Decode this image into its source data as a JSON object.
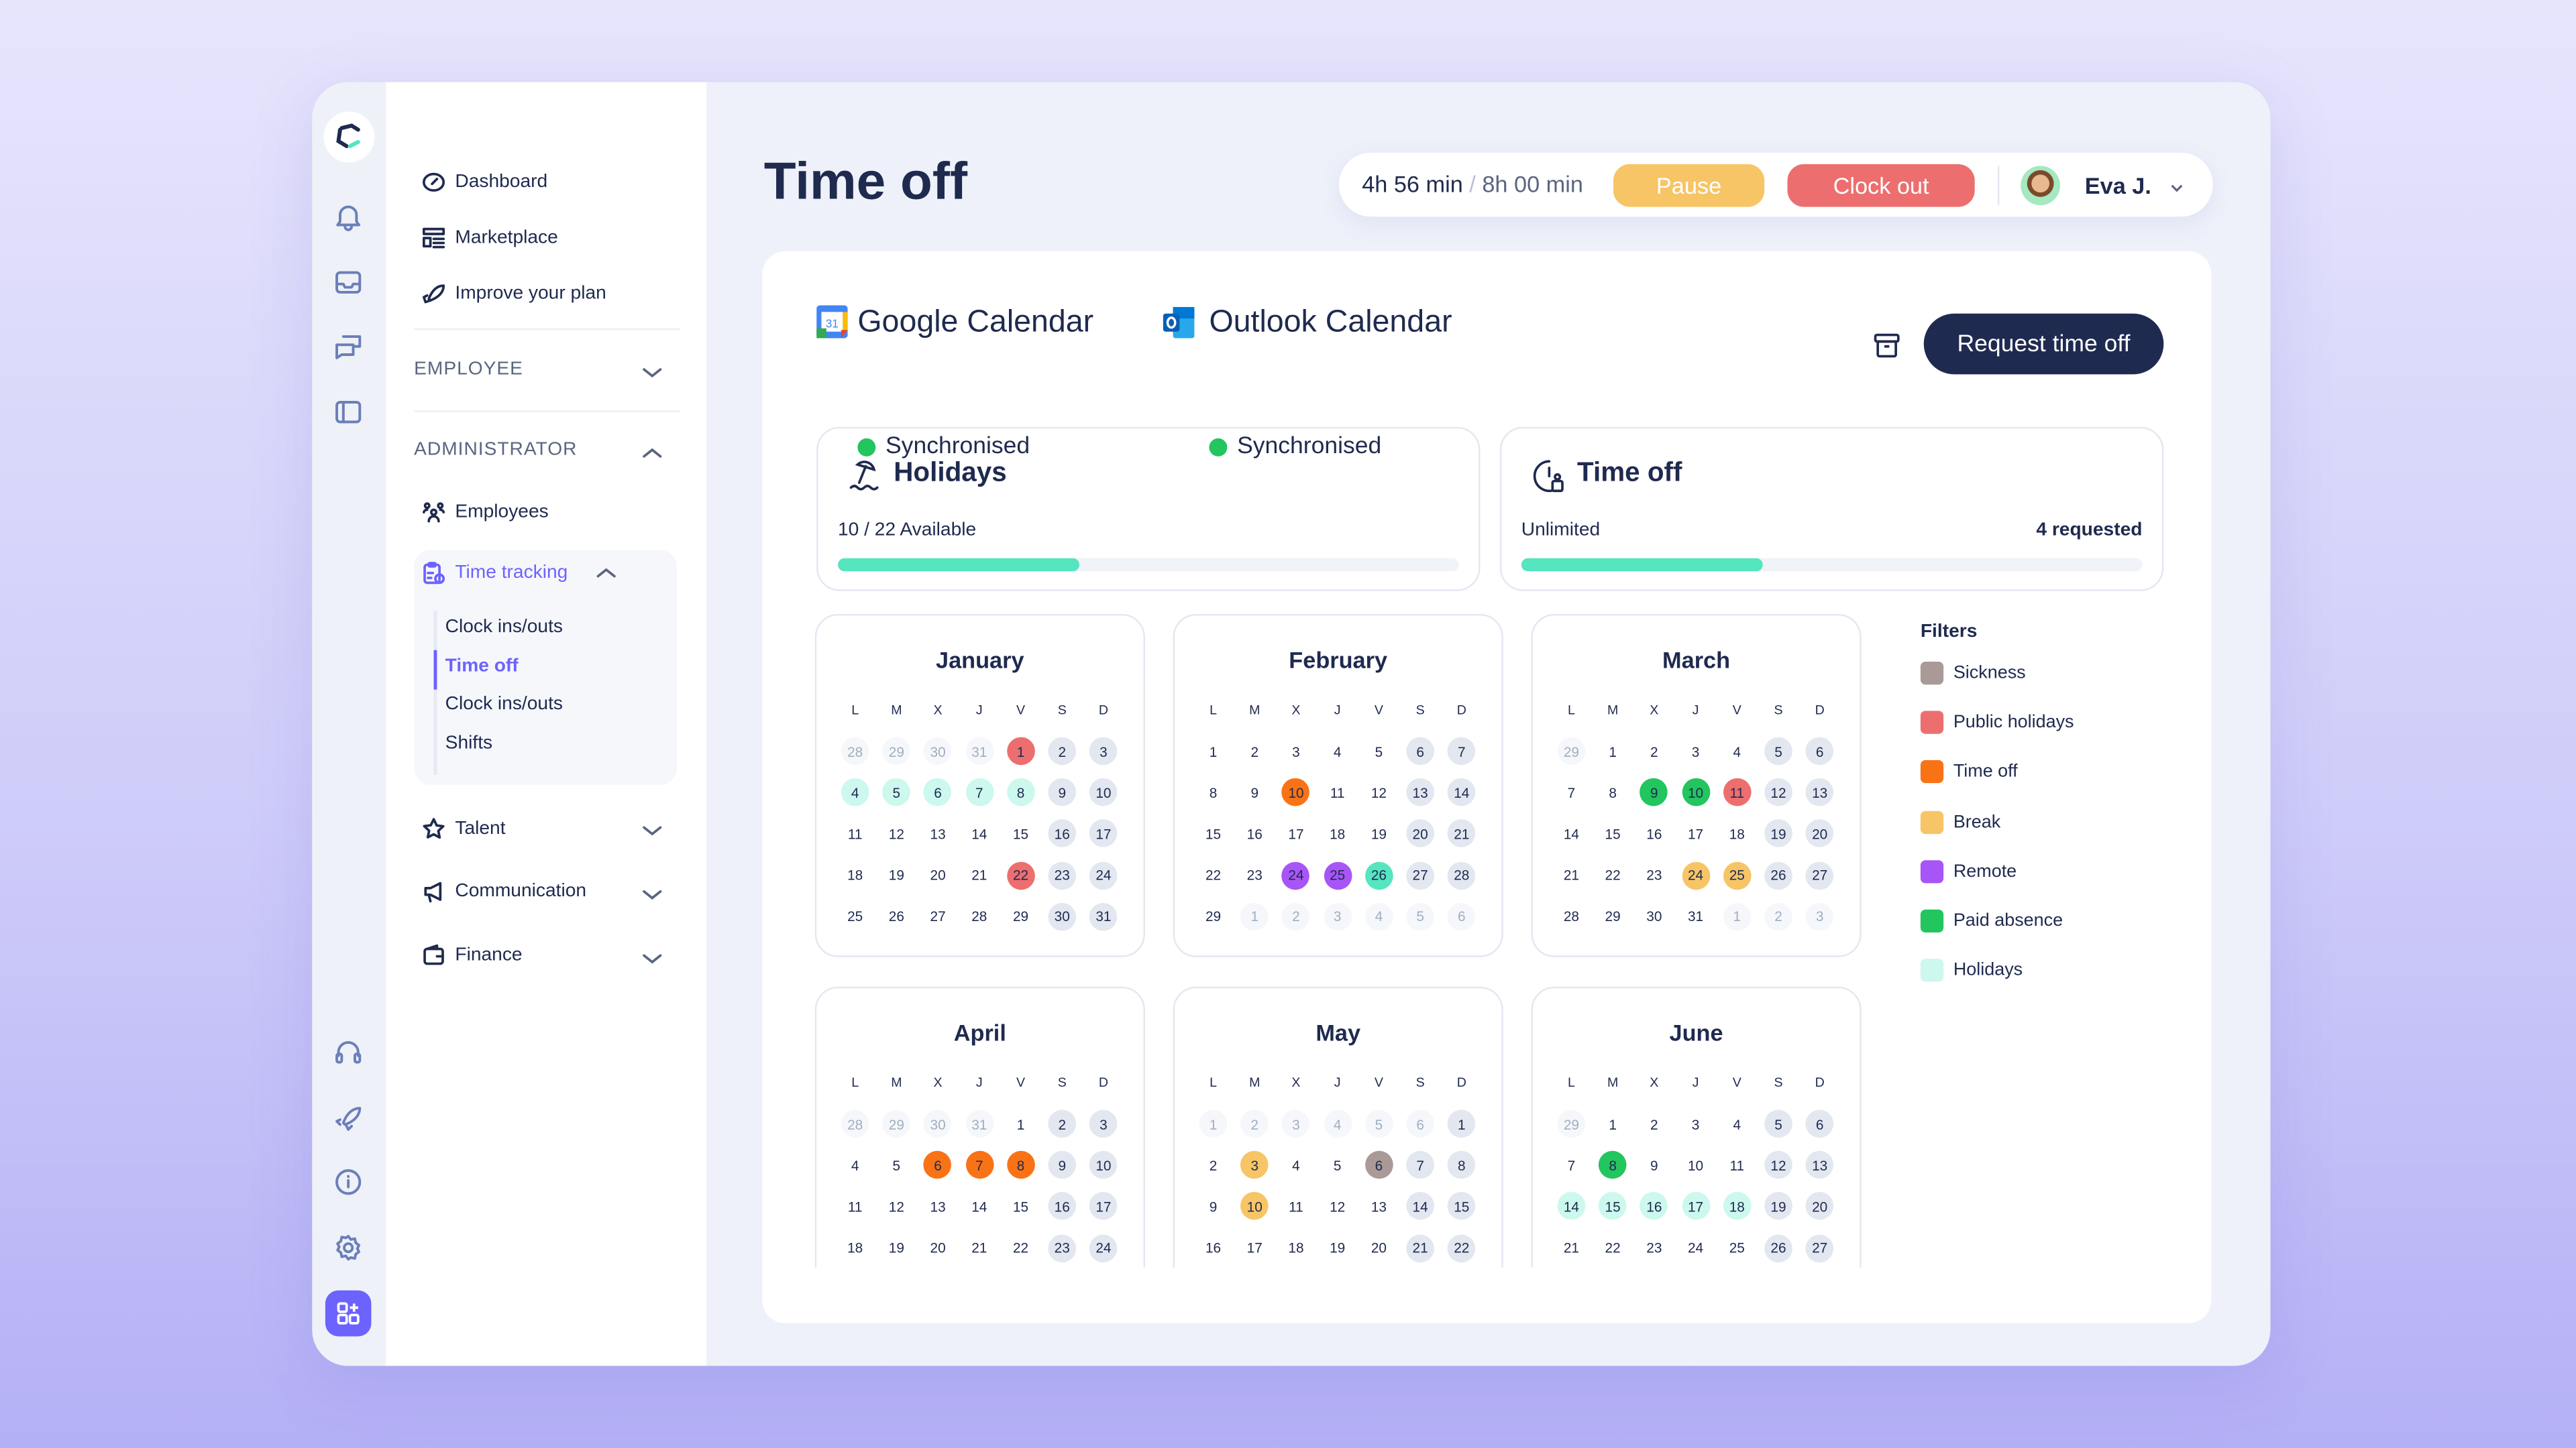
{
  "rail": {
    "top_icons": [
      "bell-icon",
      "inbox-icon",
      "chat-icon",
      "sidebar-panel-icon"
    ],
    "bottom_icons": [
      "headset-icon",
      "rocket-icon",
      "info-icon",
      "gear-icon"
    ]
  },
  "nav": {
    "items": [
      {
        "label": "Dashboard",
        "icon": "dashboard-icon"
      },
      {
        "label": "Marketplace",
        "icon": "marketplace-icon"
      },
      {
        "label": "Improve your plan",
        "icon": "rocket-icon"
      }
    ],
    "employee_section": "EMPLOYEE",
    "admin_section": "ADMINISTRATOR",
    "employees": "Employees",
    "time_tracking": "Time tracking",
    "time_tracking_items": [
      "Clock ins/outs",
      "Time off",
      "Clock ins/outs",
      "Shifts"
    ],
    "active_subitem": "Time off",
    "groups": [
      {
        "label": "Talent",
        "icon": "star-icon"
      },
      {
        "label": "Communication",
        "icon": "megaphone-icon"
      },
      {
        "label": "Finance",
        "icon": "wallet-icon"
      }
    ]
  },
  "header": {
    "title": "Time off",
    "worked": "4h 56 min",
    "separator": "/",
    "target": "8h 00 min",
    "pause": "Pause",
    "clock_out": "Clock out",
    "user": "Eva J."
  },
  "integrations": [
    {
      "name": "Google Calendar",
      "status": "Synchronised"
    },
    {
      "name": "Outlook Calendar",
      "status": "Synchronised"
    }
  ],
  "request_button": "Request time off",
  "stats": {
    "holidays": {
      "title": "Holidays",
      "text": "10 / 22 Available",
      "progress": 0.39
    },
    "time_off": {
      "title": "Time off",
      "text": "Unlimited",
      "requested": "4 requested",
      "progress": 0.39
    }
  },
  "weekdays": [
    "L",
    "M",
    "X",
    "J",
    "V",
    "S",
    "D"
  ],
  "colors": {
    "we": "#e2e7f0",
    "o": "#f5f7fa",
    "ph": "#ed6e6e",
    "to": "#f97316",
    "br": "#f7c566",
    "rem": "#a855f7",
    "pa": "#22c55e",
    "hol": "#ccf8ee",
    "hs": "#55e5bf",
    "sk": "#a99a98"
  },
  "months": [
    {
      "name": "January",
      "weeks": [
        [
          "28:o",
          "29:o",
          "30:o",
          "31:o",
          "1:ph",
          "2:we",
          "3:we"
        ],
        [
          "4:hol",
          "5:hol",
          "6:hol",
          "7:hol",
          "8:hol",
          "9:we",
          "10:we"
        ],
        [
          "11",
          "12",
          "13",
          "14",
          "15",
          "16:we",
          "17:we"
        ],
        [
          "18",
          "19",
          "20",
          "21",
          "22:ph",
          "23:we",
          "24:we"
        ],
        [
          "25",
          "26",
          "27",
          "28",
          "29",
          "30:we",
          "31:we"
        ]
      ]
    },
    {
      "name": "February",
      "weeks": [
        [
          "1",
          "2",
          "3",
          "4",
          "5",
          "6:we",
          "7:we"
        ],
        [
          "8",
          "9",
          "10:to",
          "11",
          "12",
          "13:we",
          "14:we"
        ],
        [
          "15",
          "16",
          "17",
          "18",
          "19",
          "20:we",
          "21:we"
        ],
        [
          "22",
          "23",
          "24:rem",
          "25:rem",
          "26:hs",
          "27:we",
          "28:we"
        ],
        [
          "29",
          "1:o",
          "2:o",
          "3:o",
          "4:o",
          "5:o",
          "6:o"
        ]
      ]
    },
    {
      "name": "March",
      "weeks": [
        [
          "29:o",
          "1",
          "2",
          "3",
          "4",
          "5:we",
          "6:we"
        ],
        [
          "7",
          "8",
          "9:pa",
          "10:pa",
          "11:ph",
          "12:we",
          "13:we"
        ],
        [
          "14",
          "15",
          "16",
          "17",
          "18",
          "19:we",
          "20:we"
        ],
        [
          "21",
          "22",
          "23",
          "24:br",
          "25:br",
          "26:we",
          "27:we"
        ],
        [
          "28",
          "29",
          "30",
          "31",
          "1:o",
          "2:o",
          "3:o"
        ]
      ]
    },
    {
      "name": "April",
      "weeks": [
        [
          "28:o",
          "29:o",
          "30:o",
          "31:o",
          "1",
          "2:we",
          "3:we"
        ],
        [
          "4",
          "5",
          "6:to",
          "7:to",
          "8:to",
          "9:we",
          "10:we"
        ],
        [
          "11",
          "12",
          "13",
          "14",
          "15",
          "16:we",
          "17:we"
        ],
        [
          "18",
          "19",
          "20",
          "21",
          "22",
          "23:we",
          "24:we"
        ]
      ]
    },
    {
      "name": "May",
      "weeks": [
        [
          "1:o",
          "2:o",
          "3:o",
          "4:o",
          "5:o",
          "6:o",
          "1:we"
        ],
        [
          "2",
          "3:br",
          "4",
          "5",
          "6:sk",
          "7:we",
          "8:we"
        ],
        [
          "9",
          "10:br",
          "11",
          "12",
          "13",
          "14:we",
          "15:we"
        ],
        [
          "16",
          "17",
          "18",
          "19",
          "20",
          "21:we",
          "22:we"
        ]
      ]
    },
    {
      "name": "June",
      "weeks": [
        [
          "29:o",
          "1",
          "2",
          "3",
          "4",
          "5:we",
          "6:we"
        ],
        [
          "7",
          "8:pa",
          "9",
          "10",
          "11",
          "12:we",
          "13:we"
        ],
        [
          "14:hol",
          "15:hol",
          "16:hol",
          "17:hol",
          "18:hol",
          "19:we",
          "20:we"
        ],
        [
          "21",
          "22",
          "23",
          "24",
          "25",
          "26:we",
          "27:we"
        ]
      ]
    }
  ],
  "filters": {
    "title": "Filters",
    "items": [
      {
        "label": "Sickness",
        "color": "#a99a98"
      },
      {
        "label": "Public holidays",
        "color": "#ed6e6e"
      },
      {
        "label": "Time off",
        "color": "#f97316"
      },
      {
        "label": "Break",
        "color": "#f7c566"
      },
      {
        "label": "Remote",
        "color": "#a855f7"
      },
      {
        "label": "Paid absence",
        "color": "#22c55e"
      },
      {
        "label": "Holidays",
        "color": "#ccf8ee"
      }
    ]
  }
}
